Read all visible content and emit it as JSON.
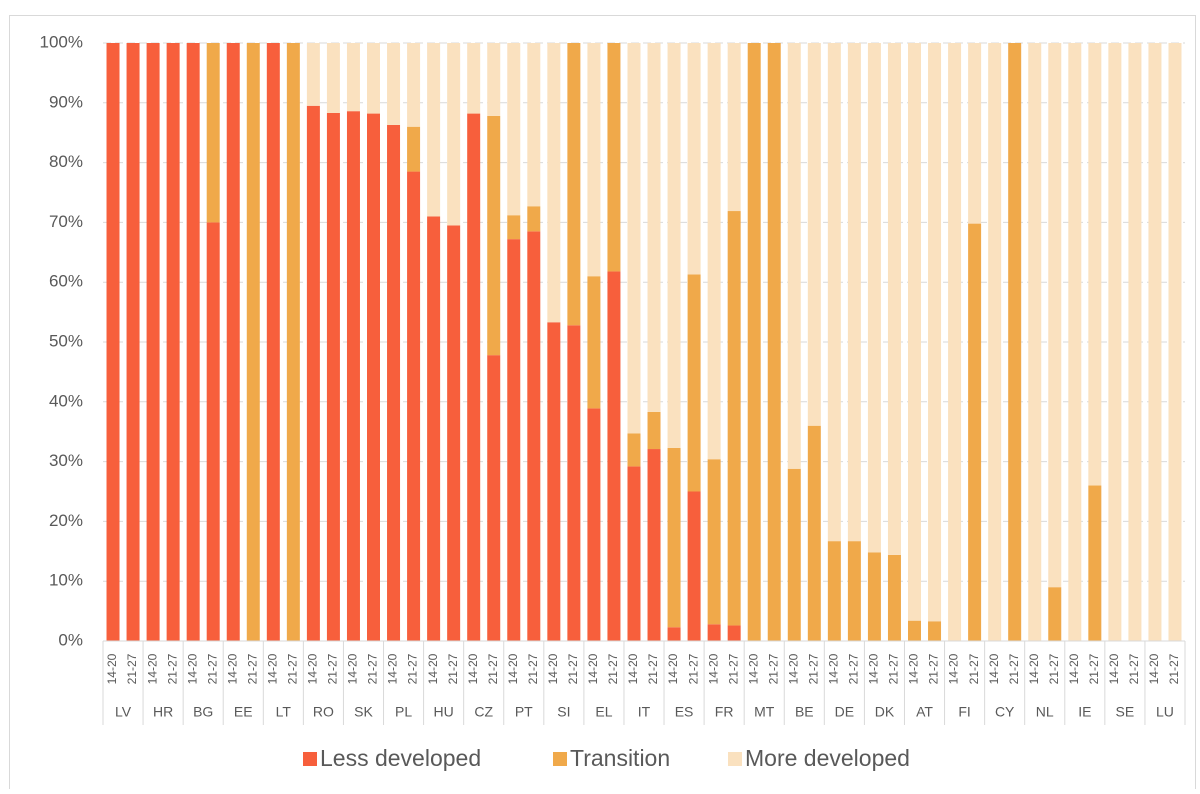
{
  "chart_data": {
    "type": "stacked-bar",
    "categories": [
      "14-20",
      "21-27",
      "14-20",
      "21-27",
      "14-20",
      "21-27",
      "14-20",
      "21-27",
      "14-20",
      "21-27",
      "14-20",
      "21-27",
      "14-20",
      "21-27",
      "14-20",
      "21-27",
      "14-20",
      "21-27",
      "14-20",
      "21-27",
      "14-20",
      "21-27",
      "14-20",
      "21-27",
      "14-20",
      "21-27",
      "14-20",
      "21-27",
      "14-20",
      "21-27",
      "14-20",
      "21-27",
      "14-20",
      "21-27",
      "14-20",
      "21-27",
      "14-20",
      "21-27",
      "14-20",
      "21-27",
      "14-20",
      "21-27",
      "14-20",
      "21-27",
      "14-20",
      "21-27",
      "14-20",
      "21-27",
      "14-20",
      "21-27",
      "14-20",
      "21-27",
      "14-20",
      "21-27"
    ],
    "groups": [
      "LV",
      "HR",
      "BG",
      "EE",
      "LT",
      "RO",
      "SK",
      "PL",
      "HU",
      "CZ",
      "PT",
      "SI",
      "EL",
      "IT",
      "ES",
      "FR",
      "MT",
      "BE",
      "DE",
      "DK",
      "AT",
      "FI",
      "CY",
      "NL",
      "IE",
      "SE",
      "LU"
    ],
    "series": [
      {
        "name": "Less developed",
        "color": "#f75f3c",
        "values": [
          100,
          100,
          100,
          100,
          100,
          70,
          100,
          0,
          100,
          0,
          89.5,
          88.3,
          88.6,
          88.2,
          86.3,
          78.5,
          71,
          69.5,
          88.2,
          47.8,
          67.2,
          68.5,
          53.3,
          52.8,
          38.9,
          61.8,
          29.2,
          32.1,
          2.3,
          25,
          2.8,
          2.6,
          0,
          0,
          0,
          0,
          0,
          0,
          0,
          0,
          0,
          0,
          0,
          0,
          0,
          0,
          0,
          0,
          0,
          0,
          0,
          0,
          0,
          0
        ]
      },
      {
        "name": "Transition",
        "color": "#f0a94a",
        "values": [
          0,
          0,
          0,
          0,
          0,
          30,
          0,
          100,
          0,
          100,
          0,
          0,
          0,
          0,
          0,
          7.5,
          0,
          0,
          0,
          40,
          4,
          4.2,
          0,
          47.2,
          22.1,
          38.2,
          5.5,
          6.2,
          30,
          36.3,
          27.6,
          69.3,
          100,
          100,
          28.8,
          36,
          16.7,
          16.7,
          14.8,
          14.4,
          3.4,
          3.3,
          0,
          69.8,
          0,
          100,
          0,
          9,
          0,
          26,
          0,
          0,
          0,
          0
        ]
      },
      {
        "name": "More developed",
        "color": "#fae1bf",
        "values": [
          0,
          0,
          0,
          0,
          0,
          0,
          0,
          0,
          0,
          0,
          10.5,
          11.7,
          11.4,
          11.8,
          13.7,
          14,
          29,
          30.5,
          11.8,
          12.2,
          28.8,
          27.3,
          46.7,
          0,
          39,
          0,
          65.3,
          61.7,
          67.7,
          38.7,
          69.6,
          28.1,
          0,
          0,
          71.2,
          64,
          83.3,
          83.3,
          85.2,
          85.6,
          96.6,
          96.7,
          100,
          30.2,
          100,
          0,
          100,
          91,
          100,
          74,
          100,
          100,
          100,
          100
        ]
      }
    ],
    "ylim": [
      0,
      100
    ],
    "yticks": [
      {
        "value": 0,
        "label": "0%"
      },
      {
        "value": 10,
        "label": "10%"
      },
      {
        "value": 20,
        "label": "20%"
      },
      {
        "value": 30,
        "label": "30%"
      },
      {
        "value": 40,
        "label": "40%"
      },
      {
        "value": 50,
        "label": "50%"
      },
      {
        "value": 60,
        "label": "60%"
      },
      {
        "value": 70,
        "label": "70%"
      },
      {
        "value": 80,
        "label": "80%"
      },
      {
        "value": 90,
        "label": "90%"
      },
      {
        "value": 100,
        "label": "100%"
      }
    ],
    "grid": true,
    "legend": "bottom"
  }
}
